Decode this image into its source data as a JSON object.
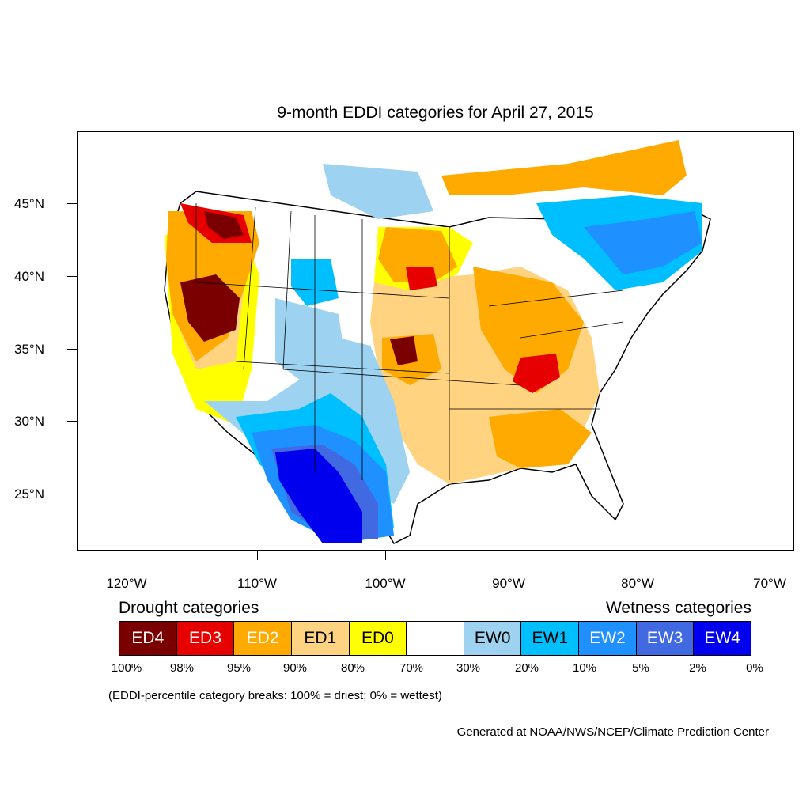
{
  "title": "9-month EDDI categories for April 27, 2015",
  "lat_labels": [
    "45°N",
    "40°N",
    "35°N",
    "30°N",
    "25°N"
  ],
  "lon_labels": [
    "120°W",
    "110°W",
    "100°W",
    "90°W",
    "80°W",
    "70°W"
  ],
  "legend": {
    "drought_heading": "Drought categories",
    "wetness_heading": "Wetness categories",
    "categories": [
      {
        "label": "ED4",
        "color": "#7a0000",
        "text_color": "#ffffff"
      },
      {
        "label": "ED3",
        "color": "#e60000",
        "text_color": "#ffffff"
      },
      {
        "label": "ED2",
        "color": "#ffaa00",
        "text_color": "#ffffff"
      },
      {
        "label": "ED1",
        "color": "#ffd37f",
        "text_color": "#000000"
      },
      {
        "label": "ED0",
        "color": "#ffff00",
        "text_color": "#000000"
      },
      {
        "label": "",
        "color": "#ffffff",
        "text_color": "#000000"
      },
      {
        "label": "EW0",
        "color": "#9dd3f0",
        "text_color": "#000000"
      },
      {
        "label": "EW1",
        "color": "#00bfff",
        "text_color": "#000000"
      },
      {
        "label": "EW2",
        "color": "#1e90ff",
        "text_color": "#ffffff"
      },
      {
        "label": "EW3",
        "color": "#4169e1",
        "text_color": "#ffffff"
      },
      {
        "label": "EW4",
        "color": "#0000ee",
        "text_color": "#ffffff"
      }
    ],
    "percentiles": [
      "100%",
      "98%",
      "95%",
      "90%",
      "80%",
      "70%",
      "30%",
      "20%",
      "10%",
      "5%",
      "2%",
      "0%"
    ]
  },
  "note": "(EDDI-percentile category breaks: 100% = driest; 0% = wettest)",
  "credit": "Generated at NOAA/NWS/NCEP/Climate Prediction Center"
}
